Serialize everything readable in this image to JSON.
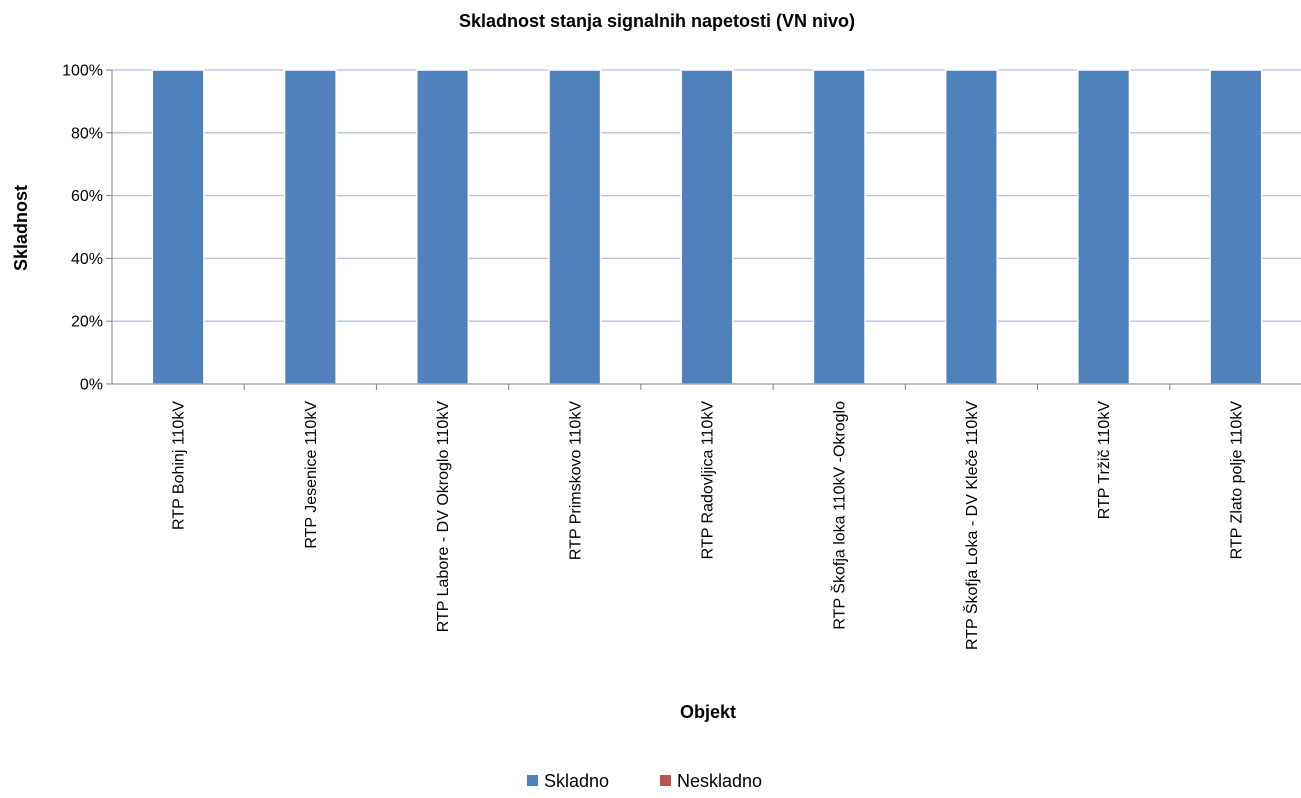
{
  "chart_data": {
    "type": "bar",
    "stacked": true,
    "title": "Skladnost stanja signalnih napetosti (VN nivo)",
    "xlabel": "Objekt",
    "ylabel": "Skladnost",
    "ylim": [
      0,
      1
    ],
    "ytick_values": [
      0,
      0.2,
      0.4,
      0.6,
      0.8,
      1
    ],
    "ytick_labels": [
      "0%",
      "20%",
      "40%",
      "60%",
      "80%",
      "100%"
    ],
    "grid": true,
    "legend_position": "bottom",
    "categories": [
      "RTP Bohinj 110kV",
      "RTP Jesenice 110kV",
      "RTP Labore - DV Okroglo 110kV",
      "RTP Primskovo 110kV",
      "RTP Radovljica 110kV",
      "RTP Škofja loka 110kV -Okroglo",
      "RTP Škofja Loka - DV Kleče 110kV",
      "RTP Tržič 110kV",
      "RTP Zlato polje 110kV"
    ],
    "series": [
      {
        "name": "Skladno",
        "color": "#4F81BD",
        "values": [
          1,
          1,
          1,
          1,
          1,
          1,
          1,
          1,
          1
        ]
      },
      {
        "name": "Neskladno",
        "color": "#C0504D",
        "values": [
          0,
          0,
          0,
          0,
          0,
          0,
          0,
          0,
          0
        ]
      }
    ]
  }
}
